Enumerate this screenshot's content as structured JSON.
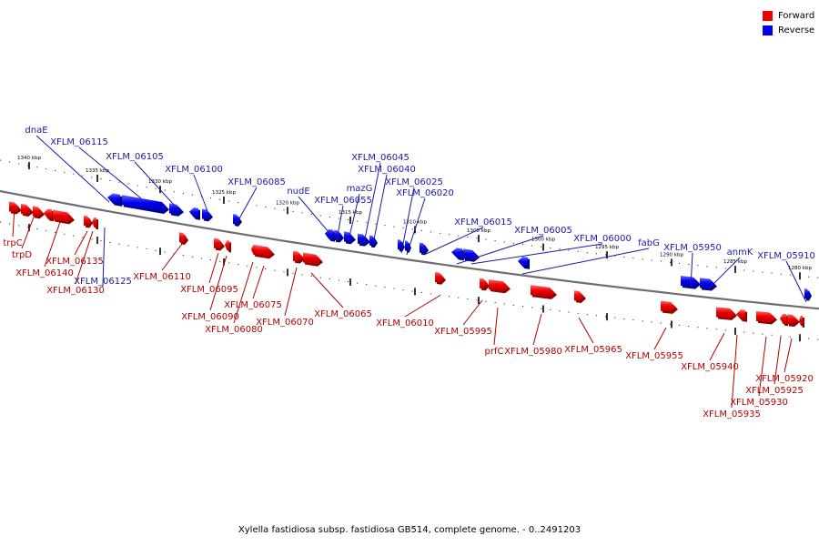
{
  "legend": {
    "forward_label": "Forward",
    "reverse_label": "Reverse",
    "forward_color": "#ee0000",
    "reverse_color": "#0000ee"
  },
  "caption": "Xylella fastidiosa subsp. fastidiosa GB514, complete genome. - 0..2491203",
  "ticks": [
    "1340 kbp",
    "1335 kbp",
    "1330 kbp",
    "1325 kbp",
    "1320 kbp",
    "1315 kbp",
    "1310 kbp",
    "1305 kbp",
    "1300 kbp",
    "1295 kbp",
    "1290 kbp",
    "1285 kbp",
    "1280 kbp"
  ],
  "reverse_genes": [
    "dnaE",
    "XFLM_06115",
    "XFLM_06105",
    "XFLM_06100",
    "XFLM_06085",
    "nudE",
    "XFLM_06055",
    "mazG",
    "XFLM_06045",
    "XFLM_06040",
    "XFLM_06025",
    "XFLM_06020",
    "XFLM_06015",
    "XFLM_06005",
    "XFLM_06000",
    "fabG",
    "XFLM_05950",
    "anmK",
    "XFLM_05910",
    "XFLM_06125"
  ],
  "forward_genes": [
    "trpC",
    "trpD",
    "XFLM_06140",
    "XFLM_06135",
    "XFLM_06130",
    "XFLM_06110",
    "XFLM_06095",
    "XFLM_06090",
    "XFLM_06080",
    "XFLM_06075",
    "XFLM_06070",
    "XFLM_06065",
    "XFLM_06010",
    "XFLM_05995",
    "prfC",
    "XFLM_05980",
    "XFLM_05965",
    "XFLM_05955",
    "XFLM_05940",
    "XFLM_05935",
    "XFLM_05930",
    "XFLM_05925",
    "XFLM_05920"
  ]
}
